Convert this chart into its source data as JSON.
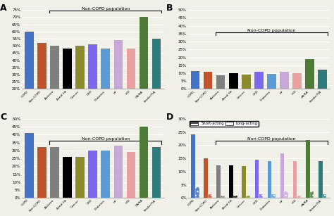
{
  "categories": [
    "COPD",
    "Non-COPD",
    "Alzheim",
    "Atrial fib",
    "Cancer",
    "CKD",
    "Diabetes",
    "HF",
    "IHD",
    "OA/RA",
    "Stroke/TIA"
  ],
  "panel_A": {
    "title": "A",
    "ylim": [
      20,
      75
    ],
    "yticks": [
      20,
      25,
      30,
      35,
      40,
      45,
      50,
      55,
      60,
      65,
      70,
      75
    ],
    "ytick_labels": [
      "20%",
      "25%",
      "30%",
      "35%",
      "40%",
      "45%",
      "50%",
      "55%",
      "60%",
      "65%",
      "70%",
      "75%"
    ],
    "values": [
      60,
      52,
      50,
      48,
      50,
      51,
      48,
      54,
      48,
      70,
      55
    ],
    "colors": [
      "#4472C4",
      "#C0522C",
      "#7F7F7F",
      "#000000",
      "#8B8B2A",
      "#7B68EE",
      "#5B9BD5",
      "#C8A8D8",
      "#E8A0A0",
      "#4E7B35",
      "#2E7B7B"
    ]
  },
  "panel_B": {
    "title": "B",
    "ylim": [
      0,
      50
    ],
    "yticks": [
      0,
      5,
      10,
      15,
      20,
      25,
      30,
      35,
      40,
      45,
      50
    ],
    "ytick_labels": [
      "0%",
      "5%",
      "10%",
      "15%",
      "20%",
      "25%",
      "30%",
      "35%",
      "40%",
      "45%",
      "50%"
    ],
    "values": [
      11.5,
      11,
      8.5,
      10,
      9,
      11,
      9.5,
      11,
      10,
      19,
      12
    ],
    "colors": [
      "#4472C4",
      "#C0522C",
      "#7F7F7F",
      "#000000",
      "#8B8B2A",
      "#7B68EE",
      "#5B9BD5",
      "#C8A8D8",
      "#E8A0A0",
      "#4E7B35",
      "#2E7B7B"
    ]
  },
  "panel_C": {
    "title": "C",
    "ylim": [
      0,
      50
    ],
    "yticks": [
      0,
      5,
      10,
      15,
      20,
      25,
      30,
      35,
      40,
      45,
      50
    ],
    "ytick_labels": [
      "0%",
      "5%",
      "10%",
      "15%",
      "20%",
      "25%",
      "30%",
      "35%",
      "40%",
      "45%",
      "50%"
    ],
    "values": [
      41,
      32,
      32,
      26,
      26,
      30,
      30,
      33,
      29,
      45,
      32
    ],
    "colors": [
      "#4472C4",
      "#C0522C",
      "#7F7F7F",
      "#000000",
      "#8B8B2A",
      "#7B68EE",
      "#5B9BD5",
      "#C8A8D8",
      "#E8A0A0",
      "#4E7B35",
      "#2E7B7B"
    ]
  },
  "panel_D": {
    "title": "D",
    "ylim": [
      0,
      30
    ],
    "yticks": [
      0,
      5,
      10,
      15,
      20,
      25,
      30
    ],
    "ytick_labels": [
      "0%",
      "5%",
      "10%",
      "15%",
      "20%",
      "25%",
      "30%"
    ],
    "short_acting": [
      4,
      1.5,
      1,
      1,
      1,
      1.5,
      1.5,
      2.5,
      1,
      2.5,
      1.5
    ],
    "long_acting": [
      24,
      15,
      12.5,
      12.5,
      12,
      14.5,
      14,
      17,
      14,
      22,
      14
    ],
    "colors": [
      "#4472C4",
      "#C0522C",
      "#7F7F7F",
      "#000000",
      "#8B8B2A",
      "#7B68EE",
      "#5B9BD5",
      "#C8A8D8",
      "#E8A0A0",
      "#4E7B35",
      "#2E7B7B"
    ]
  },
  "bracket_text": "Non-COPD population",
  "bg_color": "#F0F0E8"
}
